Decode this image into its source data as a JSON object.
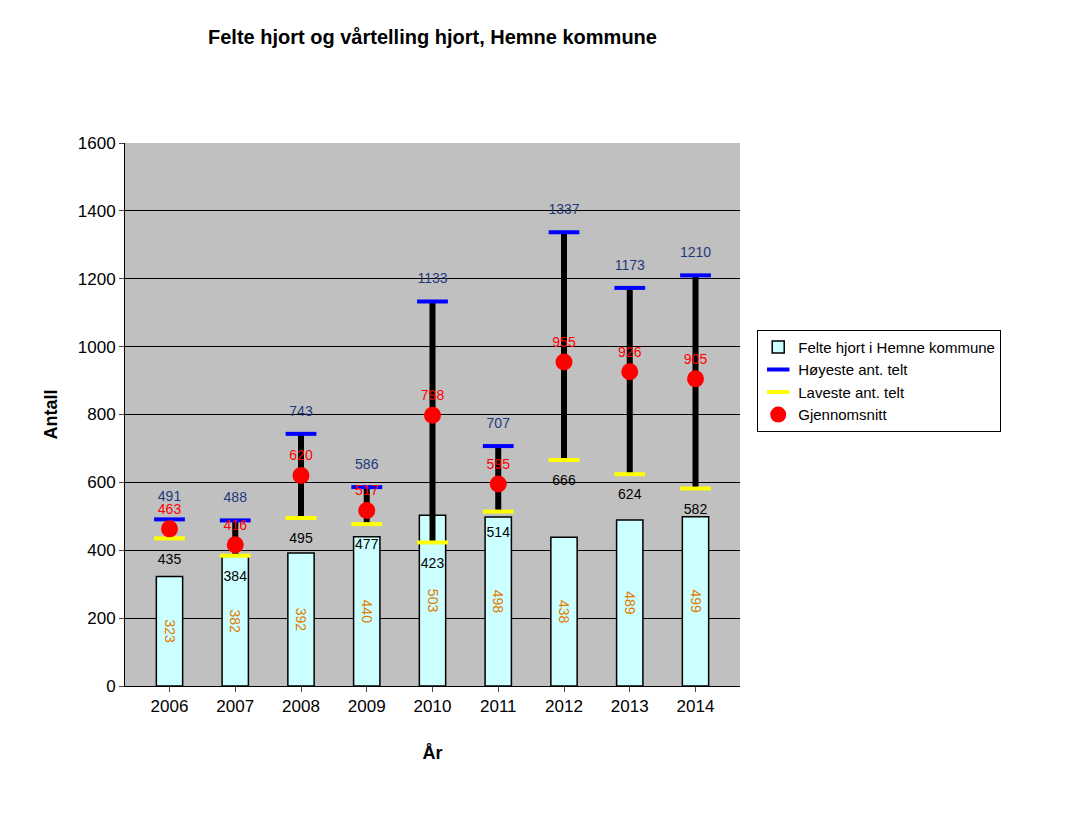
{
  "chart_data": {
    "type": "bar",
    "title": "Felte hjort og vårtelling hjort, Hemne kommune",
    "x_label": "År",
    "y_label": "Antall",
    "categories": [
      "2006",
      "2007",
      "2008",
      "2009",
      "2010",
      "2011",
      "2012",
      "2013",
      "2014"
    ],
    "series": [
      {
        "name": "Felte hjort i Hemne kommune",
        "type": "bar",
        "color": "#ccffff",
        "values": [
          323,
          382,
          392,
          440,
          503,
          498,
          438,
          489,
          499
        ]
      },
      {
        "name": "Høyeste ant. telt",
        "type": "scatter",
        "marker": "dash",
        "color": "#0000ff",
        "values": [
          491,
          488,
          743,
          586,
          1133,
          707,
          1337,
          1173,
          1210
        ]
      },
      {
        "name": "Laveste ant. telt",
        "type": "scatter",
        "marker": "dash",
        "color": "#ffff00",
        "values": [
          435,
          384,
          495,
          477,
          423,
          514,
          666,
          624,
          582
        ]
      },
      {
        "name": "Gjennomsnitt",
        "type": "scatter",
        "marker": "circle",
        "color": "#ff0000",
        "values": [
          463,
          416,
          620,
          517,
          798,
          595,
          955,
          926,
          905
        ]
      }
    ],
    "ylim": [
      0,
      1600
    ],
    "yticks": [
      0,
      200,
      400,
      600,
      800,
      1000,
      1200,
      1400,
      1600
    ],
    "grid": true,
    "legend": "right",
    "data_labels": true
  }
}
